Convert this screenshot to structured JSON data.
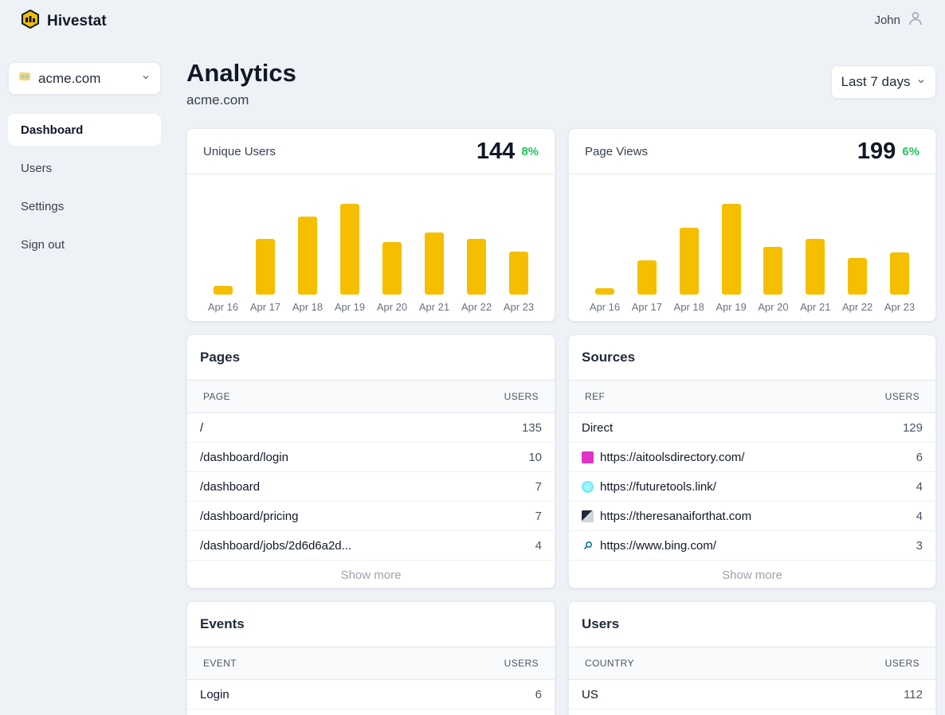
{
  "app": {
    "name": "Hivestat"
  },
  "user": {
    "name": "John"
  },
  "site_select": {
    "value": "acme.com"
  },
  "nav": [
    {
      "label": "Dashboard",
      "active": true
    },
    {
      "label": "Users",
      "active": false
    },
    {
      "label": "Settings",
      "active": false
    },
    {
      "label": "Sign out",
      "active": false
    }
  ],
  "header": {
    "title": "Analytics",
    "subtitle": "acme.com"
  },
  "date_range": {
    "value": "Last 7 days"
  },
  "colors": {
    "accent": "#f5bf00",
    "positive": "#22c55e",
    "background": "#eef2f6"
  },
  "metrics": [
    {
      "label": "Unique Users",
      "value": "144",
      "change": "8%",
      "chart_data": {
        "type": "bar",
        "categories": [
          "Apr 16",
          "Apr 17",
          "Apr 18",
          "Apr 19",
          "Apr 20",
          "Apr 21",
          "Apr 22",
          "Apr 23"
        ],
        "values": [
          9,
          58,
          82,
          95,
          55,
          65,
          58,
          45
        ],
        "ylim": [
          0,
          100
        ]
      }
    },
    {
      "label": "Page Views",
      "value": "199",
      "change": "6%",
      "chart_data": {
        "type": "bar",
        "categories": [
          "Apr 16",
          "Apr 17",
          "Apr 18",
          "Apr 19",
          "Apr 20",
          "Apr 21",
          "Apr 22",
          "Apr 23"
        ],
        "values": [
          7,
          36,
          70,
          95,
          50,
          58,
          38,
          44
        ],
        "ylim": [
          0,
          100
        ]
      }
    }
  ],
  "pages": {
    "title": "Pages",
    "col1": "PAGE",
    "col2": "USERS",
    "rows": [
      {
        "label": "/",
        "value": "135"
      },
      {
        "label": "/dashboard/login",
        "value": "10"
      },
      {
        "label": "/dashboard",
        "value": "7"
      },
      {
        "label": "/dashboard/pricing",
        "value": "7"
      },
      {
        "label": "/dashboard/jobs/2d6d6a2d...",
        "value": "4"
      }
    ],
    "show_more": "Show more"
  },
  "sources": {
    "title": "Sources",
    "col1": "REF",
    "col2": "USERS",
    "rows": [
      {
        "label": "Direct",
        "value": "129",
        "icon": ""
      },
      {
        "label": "https://aitoolsdirectory.com/",
        "value": "6",
        "icon": "aitoolsdirectory-favicon-icon"
      },
      {
        "label": "https://futuretools.link/",
        "value": "4",
        "icon": "futuretools-favicon-icon"
      },
      {
        "label": "https://theresanaiforthat.com",
        "value": "4",
        "icon": "theresanaiforthat-favicon-icon"
      },
      {
        "label": "https://www.bing.com/",
        "value": "3",
        "icon": "search-icon"
      }
    ],
    "show_more": "Show more"
  },
  "events": {
    "title": "Events",
    "col1": "EVENT",
    "col2": "USERS",
    "rows": [
      {
        "label": "Login",
        "value": "6"
      }
    ]
  },
  "users_table": {
    "title": "Users",
    "col1": "COUNTRY",
    "col2": "USERS",
    "rows": [
      {
        "label": "US",
        "value": "112"
      }
    ]
  }
}
